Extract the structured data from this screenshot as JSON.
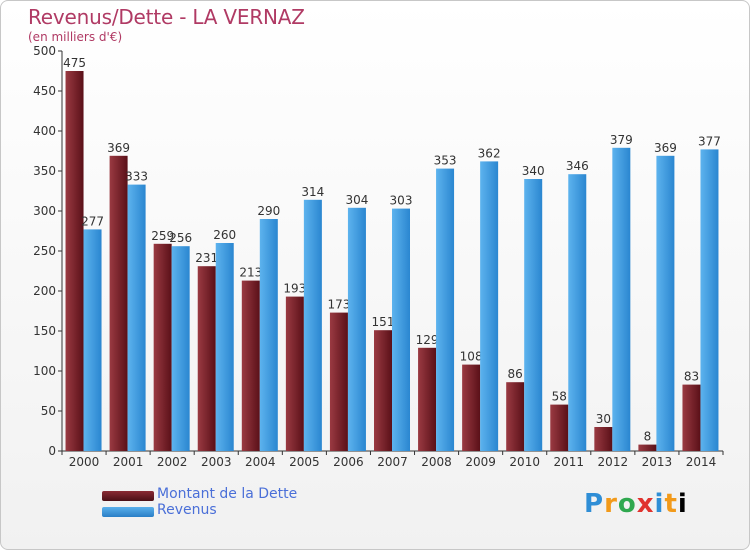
{
  "chart_data": {
    "type": "bar",
    "title": "Revenus/Dette - LA VERNAZ",
    "subtitle": "(en milliers d'€)",
    "categories": [
      "2000",
      "2001",
      "2002",
      "2003",
      "2004",
      "2005",
      "2006",
      "2007",
      "2008",
      "2009",
      "2010",
      "2011",
      "2012",
      "2013",
      "2014"
    ],
    "series": [
      {
        "name": "Montant de la Dette",
        "color": "#7a1f28",
        "values": [
          475,
          369,
          259,
          231,
          213,
          193,
          173,
          151,
          129,
          108,
          86,
          58,
          30,
          8,
          83
        ]
      },
      {
        "name": "Revenus",
        "color": "#3a95dc",
        "values": [
          277,
          333,
          256,
          260,
          290,
          314,
          304,
          303,
          353,
          362,
          340,
          346,
          379,
          369,
          377
        ]
      }
    ],
    "ylim": [
      0,
      500
    ],
    "yticks": [
      0,
      50,
      100,
      150,
      200,
      250,
      300,
      350,
      400,
      450,
      500
    ],
    "grid": false,
    "legend": "bottom-left"
  },
  "logo": {
    "letters": [
      "P",
      "r",
      "o",
      "x",
      "i",
      "t",
      "i"
    ]
  }
}
